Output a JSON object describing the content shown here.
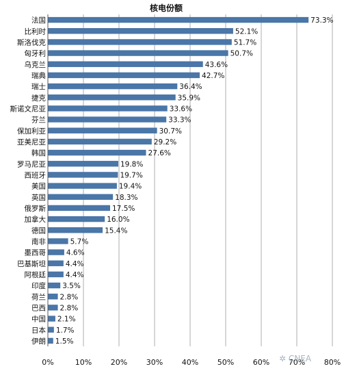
{
  "chart_data": {
    "type": "bar",
    "orientation": "horizontal",
    "title": "核电份额",
    "categories": [
      "法国",
      "比利时",
      "斯洛伐克",
      "匈牙利",
      "乌克兰",
      "瑞典",
      "瑞士",
      "捷克",
      "斯诺文尼亚",
      "芬兰",
      "保加利亚",
      "亚美尼亚",
      "韩国",
      "罗马尼亚",
      "西班牙",
      "美国",
      "英国",
      "俄罗斯",
      "加拿大",
      "德国",
      "南非",
      "墨西哥",
      "巴基斯坦",
      "阿根廷",
      "印度",
      "荷兰",
      "巴西",
      "中国",
      "日本",
      "伊朗"
    ],
    "values": [
      73.3,
      52.1,
      51.7,
      50.7,
      43.6,
      42.7,
      36.4,
      35.9,
      33.6,
      33.3,
      30.7,
      29.2,
      27.6,
      19.8,
      19.7,
      19.4,
      18.3,
      17.5,
      16.0,
      15.4,
      5.7,
      4.6,
      4.4,
      4.4,
      3.5,
      2.8,
      2.8,
      2.1,
      1.7,
      1.5
    ],
    "value_labels": [
      "73.3%",
      "52.1%",
      "51.7%",
      "50.7%",
      "43.6%",
      "42.7%",
      "36.4%",
      "35.9%",
      "33.6%",
      "33.3%",
      "30.7%",
      "29.2%",
      "27.6%",
      "19.8%",
      "19.7%",
      "19.4%",
      "18.3%",
      "17.5%",
      "16.0%",
      "15.4%",
      "5.7%",
      "4.6%",
      "4.4%",
      "4.4%",
      "3.5%",
      "2.8%",
      "2.8%",
      "2.1%",
      "1.7%",
      "1.5%"
    ],
    "xlim": [
      0,
      80
    ],
    "x_ticks": [
      "0%",
      "10%",
      "20%",
      "30%",
      "40%",
      "50%",
      "60%",
      "70%",
      "80%"
    ],
    "grid": true,
    "bar_color": "#4a76a8"
  },
  "watermark": "CNEA"
}
